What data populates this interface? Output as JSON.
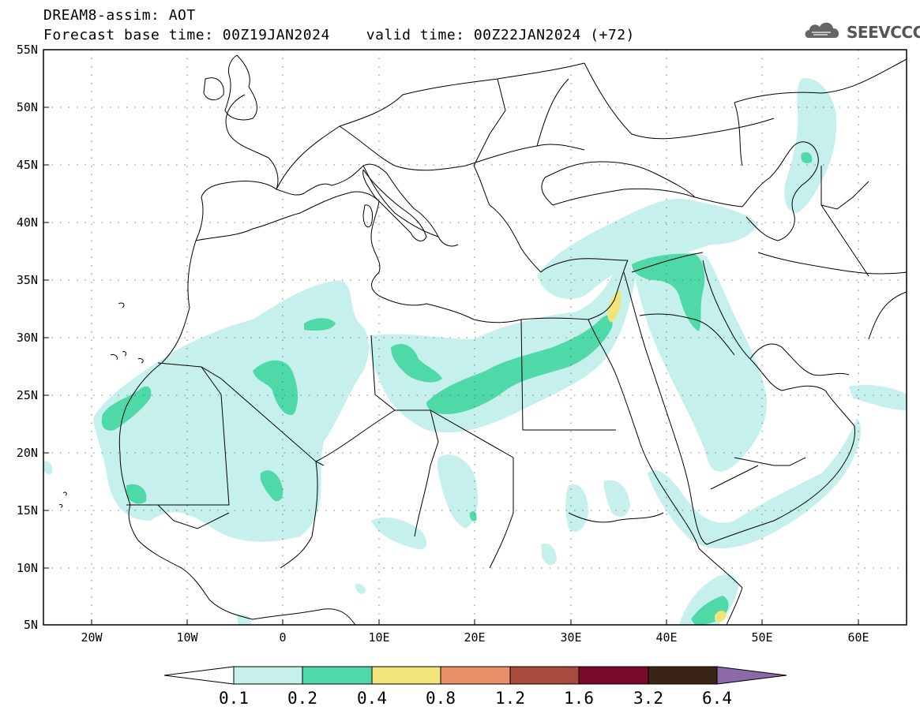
{
  "header": {
    "title": "DREAM8-assim: AOT",
    "base_time": "Forecast base time: 00Z19JAN2024",
    "valid_time": "valid time: 00Z22JAN2024 (+72)"
  },
  "logo": {
    "text": "SEEVCCC",
    "icon": "cloud-logo-icon"
  },
  "map": {
    "projection": "cylindrical equidistant",
    "lon_range": [
      -25,
      65
    ],
    "lat_range": [
      5,
      55
    ],
    "lat_labels": [
      "55N",
      "50N",
      "45N",
      "40N",
      "35N",
      "30N",
      "25N",
      "20N",
      "15N",
      "10N",
      "5N"
    ],
    "lon_labels": [
      "20W",
      "10W",
      "0",
      "10E",
      "20E",
      "30E",
      "40E",
      "50E",
      "60E"
    ],
    "grid": "dotted every 5 degrees"
  },
  "colorbar": {
    "levels": [
      "0.1",
      "0.2",
      "0.4",
      "0.8",
      "1.2",
      "1.6",
      "3.2",
      "6.4"
    ],
    "colors": [
      "#c6f0ec",
      "#4fd9a8",
      "#f0e57a",
      "#e8906a",
      "#a84a3e",
      "#7a0a2a",
      "#3a2416",
      "#8c6aa8"
    ],
    "under_color": "#ffffff"
  }
}
